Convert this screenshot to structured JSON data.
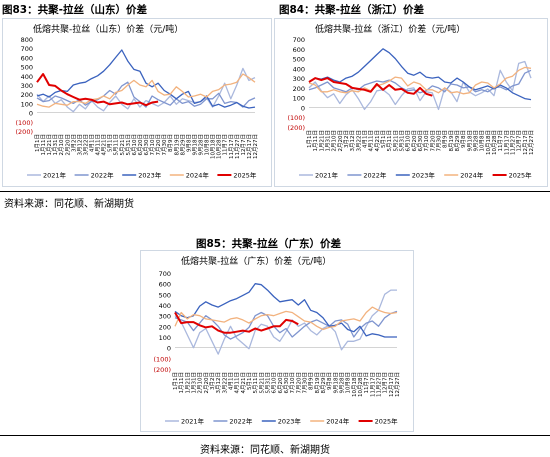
{
  "figures": {
    "fig83": {
      "title": "图83：共聚-拉丝（山东）价差"
    },
    "fig84": {
      "title": "图84：共聚-拉丝（浙江）价差"
    },
    "fig85": {
      "title": "图85：共聚-拉丝（广东）价差"
    }
  },
  "source_top": "资料来源：同花顺、新湖期货",
  "source_bottom": "资料来源：同花顺、新湖期货",
  "colors": {
    "2021": "#aab8dd",
    "2022": "#7f95cf",
    "2023": "#3a62be",
    "2024": "#f2b27e",
    "2025": "#e00000",
    "neg_label": "#c00000"
  },
  "chart_data": [
    {
      "type": "line",
      "title": "低熔共聚-拉丝（山东）价差（元/吨）",
      "ylim": [
        -200,
        800
      ],
      "y_ticks": [
        "800",
        "700",
        "600",
        "500",
        "400",
        "300",
        "200",
        "100",
        "0",
        "(100)",
        "(200)"
      ],
      "x_ticks": [
        "1月1日",
        "1月11日",
        "1月21日",
        "1月31日",
        "2月10日",
        "2月20日",
        "3月2日",
        "3月12日",
        "3月22日",
        "4月1日",
        "4月11日",
        "4月21日",
        "5月1日",
        "5月11日",
        "5月21日",
        "5月31日",
        "6月10日",
        "6月20日",
        "6月30日",
        "7月10日",
        "7月20日",
        "7月30日",
        "8月9日",
        "8月19日",
        "8月29日",
        "9月8日",
        "9月18日",
        "9月28日",
        "10月8日",
        "10月18日",
        "10月28日",
        "11月7日",
        "11月17日",
        "11月27日",
        "12月7日",
        "12月17日",
        "12月27日"
      ],
      "legend": [
        "2021年",
        "2022年",
        "2023年",
        "2024年",
        "2025年"
      ],
      "series": [
        {
          "name": "2021年",
          "values": [
            200,
            120,
            180,
            100,
            140,
            60,
            10,
            90,
            40,
            130,
            60,
            20,
            110,
            180,
            90,
            40,
            150,
            60,
            130,
            100,
            70,
            110,
            180,
            90,
            150,
            130,
            110,
            120,
            160,
            60,
            180,
            320,
            150,
            300,
            480,
            350,
            380
          ]
        },
        {
          "name": "2022年",
          "values": [
            160,
            120,
            130,
            180,
            160,
            130,
            100,
            140,
            80,
            120,
            140,
            180,
            240,
            200,
            290,
            330,
            170,
            120,
            60,
            180,
            140,
            110,
            80,
            150,
            100,
            120,
            70,
            90,
            150,
            150,
            210,
            100,
            120,
            110,
            60,
            130,
            160
          ]
        },
        {
          "name": "2023年",
          "values": [
            180,
            200,
            170,
            220,
            240,
            230,
            300,
            320,
            330,
            370,
            400,
            450,
            520,
            600,
            680,
            560,
            470,
            450,
            320,
            280,
            320,
            240,
            200,
            150,
            200,
            230,
            100,
            120,
            180,
            70,
            90,
            60,
            80,
            110,
            70,
            50,
            60
          ]
        },
        {
          "name": "2024年",
          "values": [
            90,
            70,
            60,
            100,
            90,
            80,
            120,
            120,
            100,
            140,
            150,
            180,
            150,
            220,
            240,
            300,
            350,
            300,
            280,
            350,
            230,
            190,
            200,
            280,
            230,
            170,
            180,
            200,
            170,
            230,
            250,
            300,
            310,
            330,
            420,
            380,
            330
          ]
        },
        {
          "name": "2025年",
          "values": [
            330,
            420,
            300,
            290,
            240,
            200,
            170,
            140,
            150,
            140,
            110,
            120,
            90,
            100,
            110,
            90,
            100,
            110,
            80,
            110,
            120,
            null,
            null,
            null,
            null,
            null,
            null,
            null,
            null,
            null,
            null,
            null,
            null,
            null,
            null,
            null,
            null
          ]
        }
      ]
    },
    {
      "type": "line",
      "title": "低熔共聚-拉丝（浙江）价差（元/吨）",
      "ylim": [
        -200,
        700
      ],
      "y_ticks": [
        "700",
        "600",
        "500",
        "400",
        "300",
        "200",
        "100",
        "0",
        "(100)",
        "(200)"
      ],
      "x_ticks": [
        "1月1日",
        "1月11日",
        "1月21日",
        "1月31日",
        "2月10日",
        "2月20日",
        "3月2日",
        "3月12日",
        "3月22日",
        "4月1日",
        "4月11日",
        "4月21日",
        "5月1日",
        "5月11日",
        "5月21日",
        "5月31日",
        "6月10日",
        "6月20日",
        "6月30日",
        "7月10日",
        "7月20日",
        "7月30日",
        "8月9日",
        "8月19日",
        "8月29日",
        "9月8日",
        "9月18日",
        "9月28日",
        "10月8日",
        "10月18日",
        "10月28日",
        "11月7日",
        "11月17日",
        "11月27日",
        "12月7日",
        "12月17日",
        "12月27日"
      ],
      "legend": [
        "2021年",
        "2022年",
        "2023年",
        "2024年",
        "2025年"
      ],
      "series": [
        {
          "name": "2021年",
          "values": [
            200,
            260,
            170,
            100,
            140,
            40,
            130,
            180,
            90,
            -20,
            60,
            170,
            180,
            130,
            30,
            120,
            190,
            200,
            70,
            160,
            150,
            -20,
            200,
            160,
            60,
            260,
            160,
            120,
            150,
            190,
            120,
            380,
            260,
            170,
            450,
            470,
            300
          ]
        },
        {
          "name": "2022年",
          "values": [
            180,
            200,
            230,
            260,
            200,
            180,
            160,
            200,
            180,
            230,
            250,
            270,
            260,
            280,
            250,
            200,
            170,
            180,
            150,
            170,
            220,
            200,
            160,
            240,
            230,
            200,
            210,
            160,
            180,
            160,
            200,
            210,
            180,
            220,
            240,
            350,
            380
          ]
        },
        {
          "name": "2023年",
          "values": [
            260,
            300,
            290,
            310,
            280,
            260,
            300,
            320,
            360,
            420,
            480,
            540,
            600,
            560,
            500,
            420,
            350,
            330,
            360,
            310,
            300,
            310,
            260,
            250,
            300,
            260,
            210,
            180,
            200,
            220,
            190,
            230,
            200,
            150,
            120,
            90,
            80
          ]
        },
        {
          "name": "2024年",
          "values": [
            250,
            230,
            160,
            160,
            180,
            160,
            150,
            170,
            160,
            200,
            170,
            220,
            240,
            270,
            310,
            300,
            220,
            260,
            240,
            180,
            180,
            150,
            200,
            150,
            160,
            140,
            150,
            230,
            260,
            250,
            200,
            240,
            300,
            320,
            380,
            410,
            400
          ]
        },
        {
          "name": "2025年",
          "values": [
            260,
            300,
            280,
            300,
            260,
            250,
            240,
            200,
            190,
            180,
            160,
            240,
            180,
            230,
            180,
            190,
            150,
            140,
            200,
            140,
            120,
            null,
            null,
            null,
            null,
            null,
            null,
            null,
            null,
            null,
            null,
            null,
            null,
            null,
            null,
            null,
            null
          ]
        }
      ]
    },
    {
      "type": "line",
      "title": "低熔共聚-拉丝（广东）价差（元/吨）",
      "ylim": [
        -200,
        700
      ],
      "y_ticks": [
        "700",
        "600",
        "500",
        "400",
        "300",
        "200",
        "100",
        "0",
        "(100)",
        "(200)"
      ],
      "x_ticks": [
        "1月1日",
        "1月11日",
        "1月21日",
        "1月31日",
        "2月10日",
        "2月20日",
        "3月2日",
        "3月12日",
        "3月22日",
        "4月1日",
        "4月11日",
        "4月21日",
        "5月1日",
        "5月11日",
        "5月21日",
        "5月31日",
        "6月10日",
        "6月20日",
        "6月30日",
        "7月10日",
        "7月20日",
        "7月30日",
        "8月9日",
        "8月19日",
        "8月29日",
        "9月8日",
        "9月18日",
        "9月28日",
        "10月8日",
        "10月18日",
        "10月28日",
        "11月7日",
        "11月17日",
        "11月27日",
        "12月7日",
        "12月17日",
        "12月27日"
      ],
      "legend": [
        "2021年",
        "2022年",
        "2023年",
        "2024年",
        "2025年"
      ],
      "series": [
        {
          "name": "2021年",
          "values": [
            300,
            240,
            120,
            0,
            140,
            180,
            60,
            -60,
            80,
            200,
            90,
            40,
            -10,
            160,
            220,
            200,
            100,
            60,
            150,
            260,
            200,
            230,
            160,
            120,
            180,
            210,
            150,
            -20,
            60,
            60,
            80,
            200,
            300,
            350,
            500,
            540,
            540
          ]
        },
        {
          "name": "2022年",
          "values": [
            280,
            260,
            240,
            160,
            230,
            300,
            260,
            200,
            120,
            80,
            110,
            140,
            190,
            300,
            330,
            300,
            200,
            140,
            180,
            100,
            150,
            200,
            240,
            260,
            230,
            200,
            250,
            260,
            220,
            100,
            180,
            230,
            250,
            200,
            280,
            320,
            340
          ]
        },
        {
          "name": "2023年",
          "values": [
            340,
            300,
            280,
            300,
            390,
            430,
            400,
            380,
            410,
            440,
            460,
            490,
            520,
            600,
            590,
            540,
            480,
            430,
            440,
            450,
            400,
            450,
            350,
            330,
            280,
            200,
            210,
            230,
            170,
            150,
            200,
            110,
            130,
            120,
            100,
            100,
            100
          ]
        },
        {
          "name": "2024年",
          "values": [
            200,
            330,
            270,
            310,
            300,
            270,
            260,
            250,
            240,
            270,
            280,
            260,
            230,
            270,
            300,
            310,
            300,
            320,
            340,
            330,
            290,
            250,
            240,
            200,
            170,
            190,
            200,
            250,
            260,
            270,
            250,
            330,
            380,
            350,
            330,
            320,
            330
          ]
        },
        {
          "name": "2025年",
          "values": [
            330,
            230,
            240,
            240,
            210,
            190,
            200,
            160,
            140,
            140,
            150,
            160,
            150,
            180,
            160,
            180,
            200,
            200,
            260,
            250,
            220,
            null,
            null,
            null,
            null,
            null,
            null,
            null,
            null,
            null,
            null,
            null,
            null,
            null,
            null,
            null,
            null
          ]
        }
      ]
    }
  ]
}
